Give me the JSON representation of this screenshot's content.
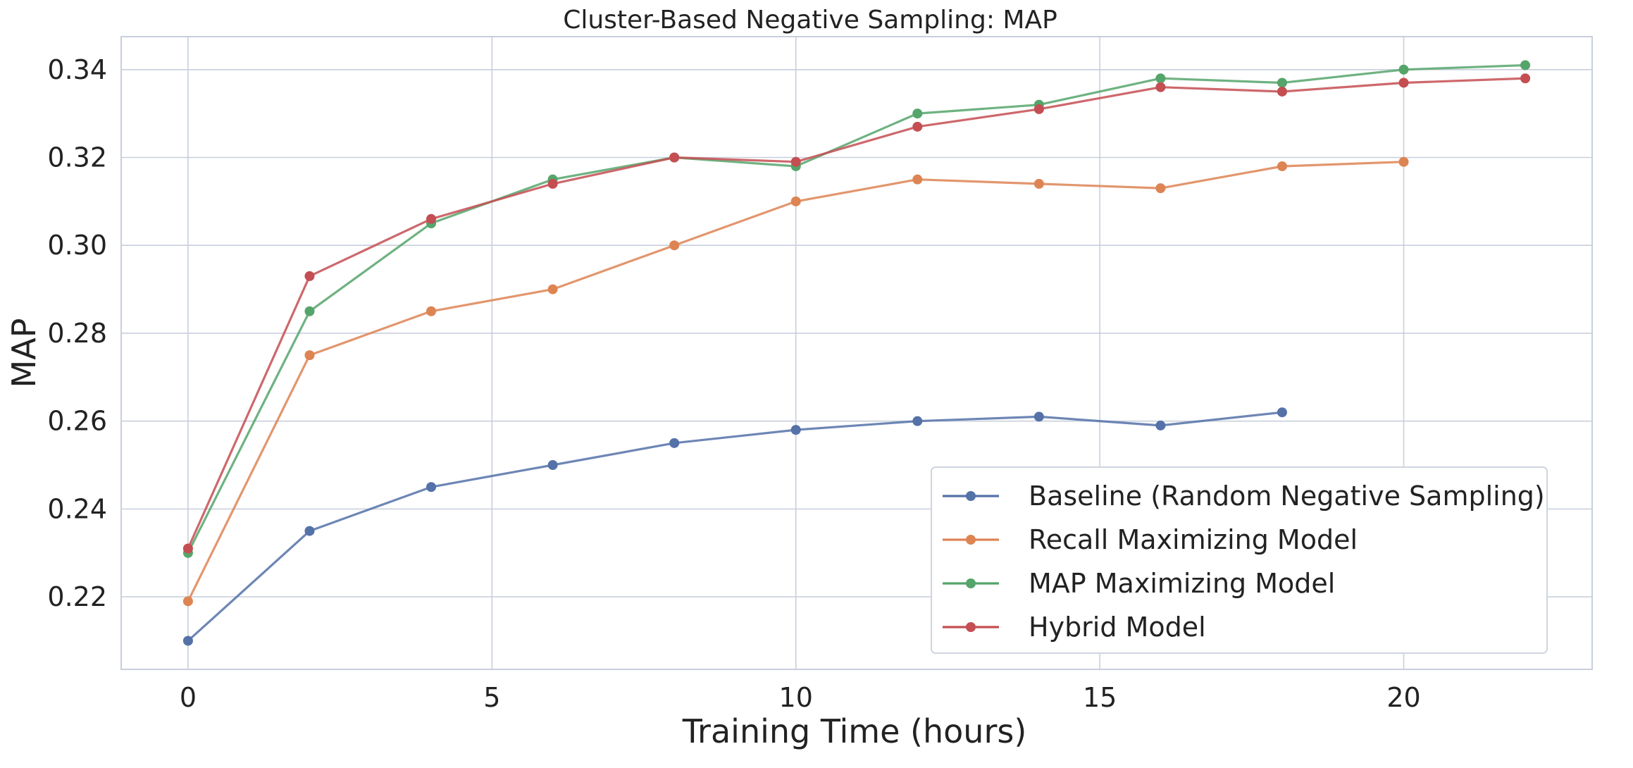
{
  "chart_data": {
    "type": "line",
    "title": "Cluster-Based Negative Sampling: MAP",
    "xlabel": "Training Time (hours)",
    "ylabel": "MAP",
    "xlim": [
      -1.1,
      23.1
    ],
    "ylim": [
      0.2035,
      0.3475
    ],
    "x_ticks": [
      0,
      5,
      10,
      15,
      20
    ],
    "y_ticks": [
      0.22,
      0.24,
      0.26,
      0.28,
      0.3,
      0.32,
      0.34
    ],
    "x_tick_labels": [
      "0",
      "5",
      "10",
      "15",
      "20"
    ],
    "y_tick_labels": [
      "0.22",
      "0.24",
      "0.26",
      "0.28",
      "0.30",
      "0.32",
      "0.34"
    ],
    "grid": true,
    "legend_position": "lower-right",
    "series": [
      {
        "name": "Baseline (Random Negative Sampling)",
        "color": "#5471a8",
        "x": [
          0,
          2,
          4,
          6,
          8,
          10,
          12,
          14,
          16,
          18
        ],
        "y": [
          0.21,
          0.235,
          0.245,
          0.25,
          0.255,
          0.258,
          0.26,
          0.261,
          0.259,
          0.262
        ]
      },
      {
        "name": "Recall Maximizing Model",
        "color": "#dd8453",
        "x": [
          0,
          2,
          4,
          6,
          8,
          10,
          12,
          14,
          16,
          18,
          20
        ],
        "y": [
          0.219,
          0.275,
          0.285,
          0.29,
          0.3,
          0.31,
          0.315,
          0.314,
          0.313,
          0.318,
          0.319
        ]
      },
      {
        "name": "MAP Maximizing Model",
        "color": "#55a56b",
        "x": [
          0,
          2,
          4,
          6,
          8,
          10,
          12,
          14,
          16,
          18,
          20,
          22
        ],
        "y": [
          0.23,
          0.285,
          0.305,
          0.315,
          0.32,
          0.318,
          0.33,
          0.332,
          0.338,
          0.337,
          0.34,
          0.341
        ]
      },
      {
        "name": "Hybrid Model",
        "color": "#c44e52",
        "x": [
          0,
          2,
          4,
          6,
          8,
          10,
          12,
          14,
          16,
          18,
          20,
          22
        ],
        "y": [
          0.231,
          0.293,
          0.306,
          0.314,
          0.32,
          0.319,
          0.327,
          0.331,
          0.336,
          0.335,
          0.337,
          0.338
        ]
      }
    ]
  }
}
